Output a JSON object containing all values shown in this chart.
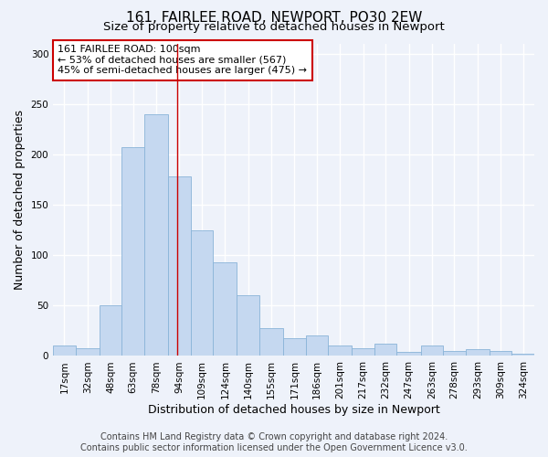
{
  "title": "161, FAIRLEE ROAD, NEWPORT, PO30 2EW",
  "subtitle": "Size of property relative to detached houses in Newport",
  "xlabel": "Distribution of detached houses by size in Newport",
  "ylabel": "Number of detached properties",
  "footer_line1": "Contains HM Land Registry data © Crown copyright and database right 2024.",
  "footer_line2": "Contains public sector information licensed under the Open Government Licence v3.0.",
  "annotation_line1": "161 FAIRLEE ROAD: 100sqm",
  "annotation_line2": "← 53% of detached houses are smaller (567)",
  "annotation_line3": "45% of semi-detached houses are larger (475) →",
  "bar_color": "#c5d8f0",
  "bar_edge_color": "#8ab4d8",
  "redline_color": "#cc0000",
  "redline_x": 100,
  "categories": [
    "17sqm",
    "32sqm",
    "48sqm",
    "63sqm",
    "78sqm",
    "94sqm",
    "109sqm",
    "124sqm",
    "140sqm",
    "155sqm",
    "171sqm",
    "186sqm",
    "201sqm",
    "217sqm",
    "232sqm",
    "247sqm",
    "263sqm",
    "278sqm",
    "293sqm",
    "309sqm",
    "324sqm"
  ],
  "bin_edges": [
    17,
    32,
    48,
    63,
    78,
    94,
    109,
    124,
    140,
    155,
    171,
    186,
    201,
    217,
    232,
    247,
    263,
    278,
    293,
    309,
    324,
    339
  ],
  "values": [
    10,
    8,
    50,
    207,
    240,
    178,
    125,
    93,
    60,
    28,
    18,
    20,
    10,
    8,
    12,
    4,
    10,
    5,
    7,
    5,
    2
  ],
  "ylim": [
    0,
    310
  ],
  "yticks": [
    0,
    50,
    100,
    150,
    200,
    250,
    300
  ],
  "background_color": "#eef2fa",
  "grid_color": "#ffffff",
  "title_fontsize": 11,
  "subtitle_fontsize": 9.5,
  "ylabel_fontsize": 9,
  "xlabel_fontsize": 9,
  "tick_fontsize": 7.5,
  "annotation_fontsize": 8,
  "footer_fontsize": 7
}
